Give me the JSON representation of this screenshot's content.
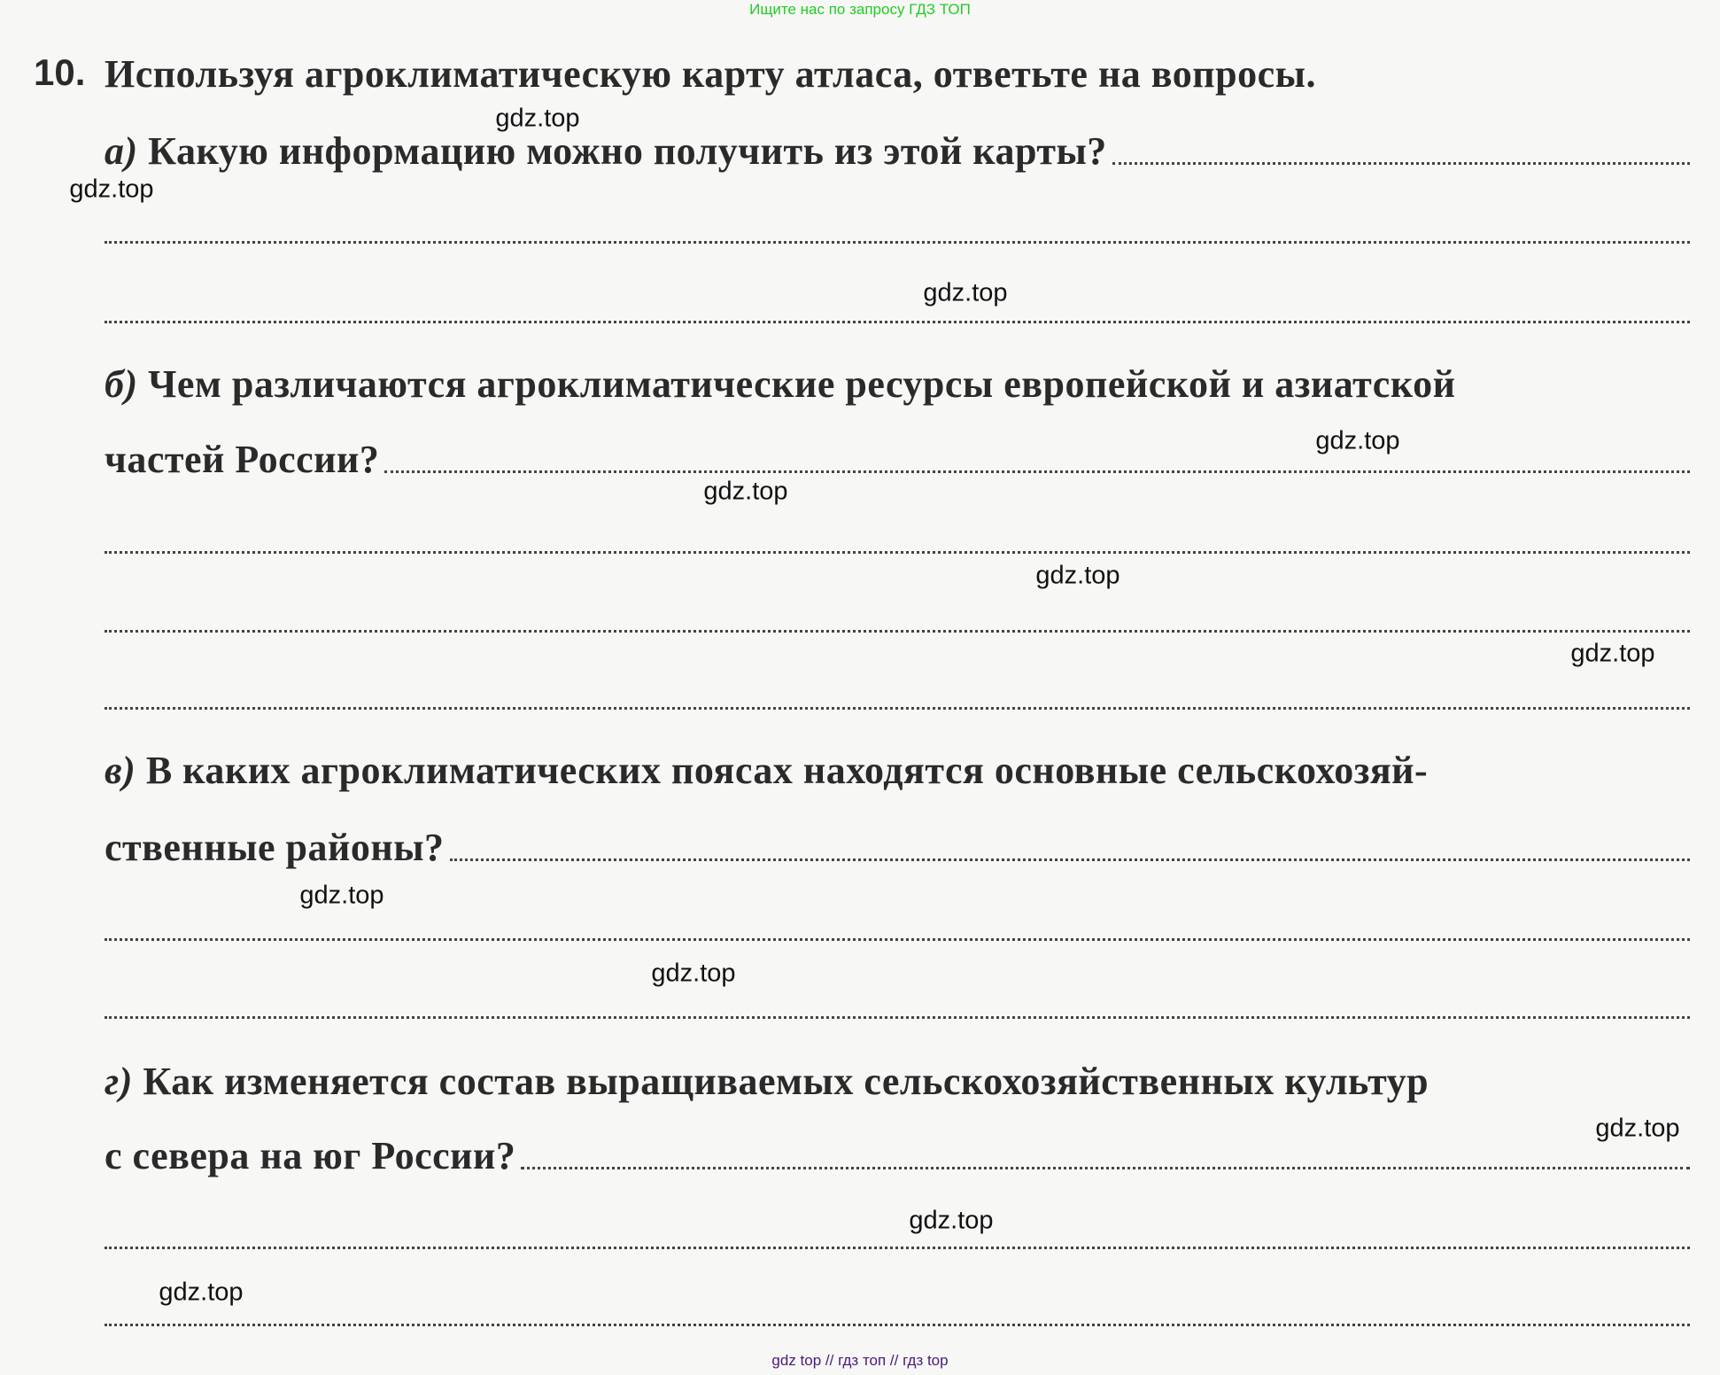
{
  "banner": "Ищите нас по запросу ГДЗ ТОП",
  "task": {
    "number": "10.",
    "title": "Используя агроклиматическую карту атласа, ответьте на вопросы."
  },
  "questions": [
    {
      "letter": "а)",
      "lines": [
        "Какую информацию можно получить из этой карты?"
      ]
    },
    {
      "letter": "б)",
      "lines": [
        "Чем различаются агроклиматические ресурсы европейской и азиатской",
        "частей России?"
      ]
    },
    {
      "letter": "в)",
      "lines": [
        "В каких агроклиматических поясах находятся основные сельскохозяй-",
        "ственные районы?"
      ]
    },
    {
      "letter": "г)",
      "lines": [
        "Как изменяется состав выращиваемых сельскохозяйственных культур",
        "с севера на юг России?"
      ]
    }
  ],
  "watermark": "gdz.top",
  "footer": "gdz top  //  гдз топ  //  гдз top",
  "colors": {
    "banner": "#22cc22",
    "footer": "#4b1a7a"
  }
}
